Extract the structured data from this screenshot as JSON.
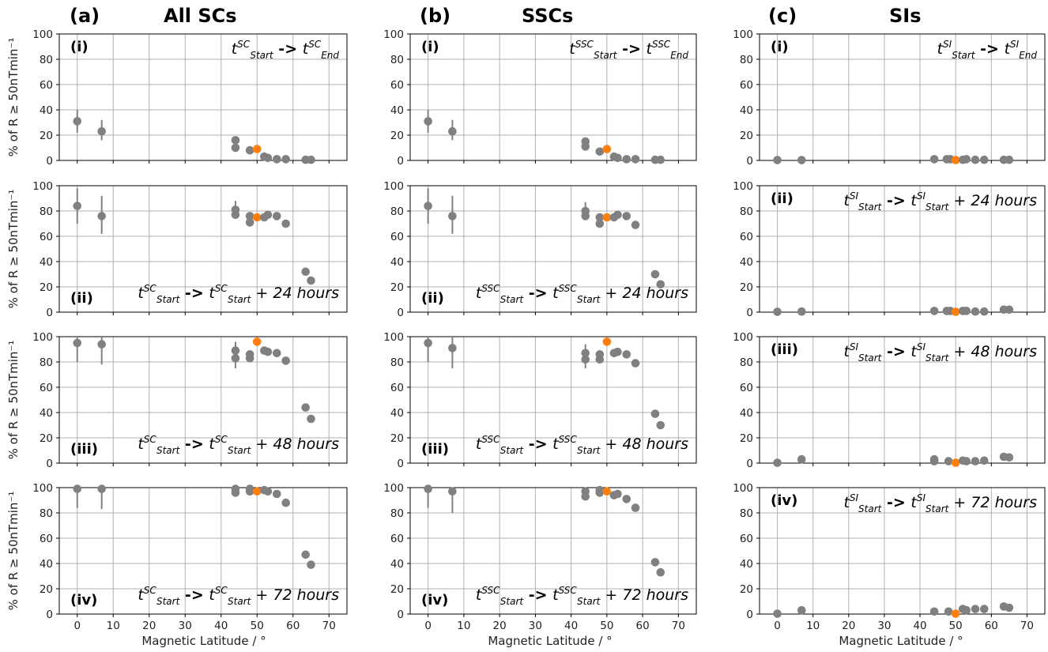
{
  "figure": {
    "column_titles": [
      {
        "letter": "(a)",
        "title": "All SCs"
      },
      {
        "letter": "(b)",
        "title": "SSCs"
      },
      {
        "letter": "(c)",
        "title": "SIs"
      }
    ],
    "xlabel": "Magnetic Latitude / °",
    "ylabel": "% of R ≥ 50nTmin⁻¹",
    "colors": {
      "point": "#808080",
      "highlight": "#ff7f0e",
      "grid": "#b0b0b0",
      "errorbar": "#808080"
    }
  },
  "chart_data": [
    {
      "type": "scatter",
      "column": 0,
      "row": 0,
      "panel": "(i)",
      "annotation": {
        "t1": "t",
        "sup1": "SC",
        "sub1": "Start",
        "arrow": "->",
        "t2": "t",
        "sup2": "SC",
        "sub2": "End",
        "plus": ""
      },
      "annotation_pos": "top-right",
      "label_pos": "top-left",
      "xlim": [
        -5,
        75
      ],
      "ylim": [
        0,
        100
      ],
      "xticks": [
        0,
        10,
        20,
        30,
        40,
        50,
        60,
        70
      ],
      "yticks": [
        0,
        20,
        40,
        60,
        80,
        100
      ],
      "grid": true,
      "points": [
        {
          "x": 0,
          "y": 31,
          "err": [
            22,
            40
          ]
        },
        {
          "x": 6.8,
          "y": 23,
          "err": [
            16,
            32
          ]
        },
        {
          "x": 44,
          "y": 16
        },
        {
          "x": 44,
          "y": 10
        },
        {
          "x": 48,
          "y": 8
        },
        {
          "x": 50,
          "y": 9,
          "highlight": true
        },
        {
          "x": 52,
          "y": 3
        },
        {
          "x": 53,
          "y": 2
        },
        {
          "x": 55.5,
          "y": 1
        },
        {
          "x": 58,
          "y": 1
        },
        {
          "x": 63.5,
          "y": 0.5
        },
        {
          "x": 65,
          "y": 0.5
        }
      ]
    },
    {
      "type": "scatter",
      "column": 0,
      "row": 1,
      "panel": "(ii)",
      "annotation": {
        "t1": "t",
        "sup1": "SC",
        "sub1": "Start",
        "arrow": "->",
        "t2": "t",
        "sup2": "SC",
        "sub2": "Start",
        "plus": "+ 24 hours"
      },
      "annotation_pos": "bottom-right",
      "label_pos": "bottom-left",
      "xlim": [
        -5,
        75
      ],
      "ylim": [
        0,
        100
      ],
      "xticks": [
        0,
        10,
        20,
        30,
        40,
        50,
        60,
        70
      ],
      "yticks": [
        0,
        20,
        40,
        60,
        80,
        100
      ],
      "grid": true,
      "points": [
        {
          "x": 0,
          "y": 84,
          "err": [
            70,
            98
          ]
        },
        {
          "x": 6.8,
          "y": 76,
          "err": [
            62,
            92
          ]
        },
        {
          "x": 44,
          "y": 81,
          "err": [
            74,
            88
          ]
        },
        {
          "x": 44,
          "y": 77
        },
        {
          "x": 48,
          "y": 76
        },
        {
          "x": 48,
          "y": 71
        },
        {
          "x": 50,
          "y": 75,
          "highlight": true
        },
        {
          "x": 52,
          "y": 75
        },
        {
          "x": 53,
          "y": 77
        },
        {
          "x": 55.5,
          "y": 76
        },
        {
          "x": 58,
          "y": 70
        },
        {
          "x": 63.5,
          "y": 32
        },
        {
          "x": 65,
          "y": 25
        }
      ]
    },
    {
      "type": "scatter",
      "column": 0,
      "row": 2,
      "panel": "(iii)",
      "annotation": {
        "t1": "t",
        "sup1": "SC",
        "sub1": "Start",
        "arrow": "->",
        "t2": "t",
        "sup2": "SC",
        "sub2": "Start",
        "plus": "+ 48 hours"
      },
      "annotation_pos": "bottom-right",
      "label_pos": "bottom-left",
      "xlim": [
        -5,
        75
      ],
      "ylim": [
        0,
        100
      ],
      "xticks": [
        0,
        10,
        20,
        30,
        40,
        50,
        60,
        70
      ],
      "yticks": [
        0,
        20,
        40,
        60,
        80,
        100
      ],
      "grid": true,
      "points": [
        {
          "x": 0,
          "y": 95,
          "err": [
            80,
            100
          ]
        },
        {
          "x": 6.8,
          "y": 94,
          "err": [
            78,
            100
          ]
        },
        {
          "x": 44,
          "y": 89,
          "err": [
            82,
            96
          ]
        },
        {
          "x": 44,
          "y": 83,
          "err": [
            75,
            90
          ]
        },
        {
          "x": 48,
          "y": 86
        },
        {
          "x": 48,
          "y": 83
        },
        {
          "x": 50,
          "y": 96,
          "highlight": true
        },
        {
          "x": 52,
          "y": 89
        },
        {
          "x": 53,
          "y": 88
        },
        {
          "x": 55.5,
          "y": 87
        },
        {
          "x": 58,
          "y": 81
        },
        {
          "x": 63.5,
          "y": 44
        },
        {
          "x": 65,
          "y": 35
        }
      ]
    },
    {
      "type": "scatter",
      "column": 0,
      "row": 3,
      "panel": "(iv)",
      "annotation": {
        "t1": "t",
        "sup1": "SC",
        "sub1": "Start",
        "arrow": "->",
        "t2": "t",
        "sup2": "SC",
        "sub2": "Start",
        "plus": "+ 72 hours"
      },
      "annotation_pos": "bottom-right",
      "label_pos": "bottom-left",
      "xlim": [
        -5,
        75
      ],
      "ylim": [
        0,
        100
      ],
      "xticks": [
        0,
        10,
        20,
        30,
        40,
        50,
        60,
        70
      ],
      "yticks": [
        0,
        20,
        40,
        60,
        80,
        100
      ],
      "grid": true,
      "points": [
        {
          "x": 0,
          "y": 99,
          "err": [
            84,
            100
          ]
        },
        {
          "x": 6.8,
          "y": 99,
          "err": [
            83,
            100
          ]
        },
        {
          "x": 44,
          "y": 99
        },
        {
          "x": 44,
          "y": 96
        },
        {
          "x": 48,
          "y": 99
        },
        {
          "x": 48,
          "y": 97
        },
        {
          "x": 50,
          "y": 97,
          "highlight": true
        },
        {
          "x": 52,
          "y": 98
        },
        {
          "x": 53,
          "y": 97
        },
        {
          "x": 55.5,
          "y": 95
        },
        {
          "x": 58,
          "y": 88
        },
        {
          "x": 63.5,
          "y": 47
        },
        {
          "x": 65,
          "y": 39
        }
      ]
    },
    {
      "type": "scatter",
      "column": 1,
      "row": 0,
      "panel": "(i)",
      "annotation": {
        "t1": "t",
        "sup1": "SSC",
        "sub1": "Start",
        "arrow": "->",
        "t2": "t",
        "sup2": "SSC",
        "sub2": "End",
        "plus": ""
      },
      "annotation_pos": "top-right",
      "label_pos": "top-left",
      "xlim": [
        -5,
        75
      ],
      "ylim": [
        0,
        100
      ],
      "xticks": [
        0,
        10,
        20,
        30,
        40,
        50,
        60,
        70
      ],
      "yticks": [
        0,
        20,
        40,
        60,
        80,
        100
      ],
      "grid": true,
      "points": [
        {
          "x": 0,
          "y": 31,
          "err": [
            22,
            40
          ]
        },
        {
          "x": 6.8,
          "y": 23,
          "err": [
            16,
            32
          ]
        },
        {
          "x": 44,
          "y": 15
        },
        {
          "x": 44,
          "y": 11
        },
        {
          "x": 48,
          "y": 7
        },
        {
          "x": 50,
          "y": 9,
          "highlight": true
        },
        {
          "x": 52,
          "y": 3
        },
        {
          "x": 53,
          "y": 2
        },
        {
          "x": 55.5,
          "y": 1
        },
        {
          "x": 58,
          "y": 1
        },
        {
          "x": 63.5,
          "y": 0.5
        },
        {
          "x": 65,
          "y": 0.5
        }
      ]
    },
    {
      "type": "scatter",
      "column": 1,
      "row": 1,
      "panel": "(ii)",
      "annotation": {
        "t1": "t",
        "sup1": "SSC",
        "sub1": "Start",
        "arrow": "->",
        "t2": "t",
        "sup2": "SSC",
        "sub2": "Start",
        "plus": "+ 24 hours"
      },
      "annotation_pos": "bottom-right",
      "label_pos": "bottom-left",
      "xlim": [
        -5,
        75
      ],
      "ylim": [
        0,
        100
      ],
      "xticks": [
        0,
        10,
        20,
        30,
        40,
        50,
        60,
        70
      ],
      "yticks": [
        0,
        20,
        40,
        60,
        80,
        100
      ],
      "grid": true,
      "points": [
        {
          "x": 0,
          "y": 84,
          "err": [
            70,
            98
          ]
        },
        {
          "x": 6.8,
          "y": 76,
          "err": [
            62,
            92
          ]
        },
        {
          "x": 44,
          "y": 80,
          "err": [
            73,
            87
          ]
        },
        {
          "x": 44,
          "y": 76
        },
        {
          "x": 48,
          "y": 75
        },
        {
          "x": 48,
          "y": 70
        },
        {
          "x": 50,
          "y": 75,
          "highlight": true
        },
        {
          "x": 52,
          "y": 75
        },
        {
          "x": 53,
          "y": 77
        },
        {
          "x": 55.5,
          "y": 76
        },
        {
          "x": 58,
          "y": 69
        },
        {
          "x": 63.5,
          "y": 30
        },
        {
          "x": 65,
          "y": 22
        }
      ]
    },
    {
      "type": "scatter",
      "column": 1,
      "row": 2,
      "panel": "(iii)",
      "annotation": {
        "t1": "t",
        "sup1": "SSC",
        "sub1": "Start",
        "arrow": "->",
        "t2": "t",
        "sup2": "SSC",
        "sub2": "Start",
        "plus": "+ 48 hours"
      },
      "annotation_pos": "bottom-right",
      "label_pos": "bottom-left",
      "xlim": [
        -5,
        75
      ],
      "ylim": [
        0,
        100
      ],
      "xticks": [
        0,
        10,
        20,
        30,
        40,
        50,
        60,
        70
      ],
      "yticks": [
        0,
        20,
        40,
        60,
        80,
        100
      ],
      "grid": true,
      "points": [
        {
          "x": 0,
          "y": 95,
          "err": [
            80,
            100
          ]
        },
        {
          "x": 6.8,
          "y": 91,
          "err": [
            75,
            100
          ]
        },
        {
          "x": 44,
          "y": 87,
          "err": [
            80,
            94
          ]
        },
        {
          "x": 44,
          "y": 82,
          "err": [
            75,
            90
          ]
        },
        {
          "x": 48,
          "y": 86
        },
        {
          "x": 48,
          "y": 82
        },
        {
          "x": 50,
          "y": 96,
          "highlight": true
        },
        {
          "x": 52,
          "y": 87
        },
        {
          "x": 53,
          "y": 88
        },
        {
          "x": 55.5,
          "y": 86
        },
        {
          "x": 58,
          "y": 79
        },
        {
          "x": 63.5,
          "y": 39
        },
        {
          "x": 65,
          "y": 30
        }
      ]
    },
    {
      "type": "scatter",
      "column": 1,
      "row": 3,
      "panel": "(iv)",
      "annotation": {
        "t1": "t",
        "sup1": "SSC",
        "sub1": "Start",
        "arrow": "->",
        "t2": "t",
        "sup2": "SSC",
        "sub2": "Start",
        "plus": "+ 72 hours"
      },
      "annotation_pos": "bottom-right",
      "label_pos": "bottom-left",
      "xlim": [
        -5,
        75
      ],
      "ylim": [
        0,
        100
      ],
      "xticks": [
        0,
        10,
        20,
        30,
        40,
        50,
        60,
        70
      ],
      "yticks": [
        0,
        20,
        40,
        60,
        80,
        100
      ],
      "grid": true,
      "points": [
        {
          "x": 0,
          "y": 99,
          "err": [
            84,
            100
          ]
        },
        {
          "x": 6.8,
          "y": 97,
          "err": [
            80,
            100
          ]
        },
        {
          "x": 44,
          "y": 97,
          "err": [
            90,
            100
          ]
        },
        {
          "x": 44,
          "y": 93
        },
        {
          "x": 48,
          "y": 98
        },
        {
          "x": 48,
          "y": 96
        },
        {
          "x": 50,
          "y": 97,
          "highlight": true
        },
        {
          "x": 52,
          "y": 94
        },
        {
          "x": 53,
          "y": 95
        },
        {
          "x": 55.5,
          "y": 91
        },
        {
          "x": 58,
          "y": 84
        },
        {
          "x": 63.5,
          "y": 41
        },
        {
          "x": 65,
          "y": 33
        }
      ]
    },
    {
      "type": "scatter",
      "column": 2,
      "row": 0,
      "panel": "(i)",
      "annotation": {
        "t1": "t",
        "sup1": "SI",
        "sub1": "Start",
        "arrow": "->",
        "t2": "t",
        "sup2": "SI",
        "sub2": "End",
        "plus": ""
      },
      "annotation_pos": "top-right",
      "label_pos": "top-left",
      "xlim": [
        -5,
        75
      ],
      "ylim": [
        0,
        100
      ],
      "xticks": [
        0,
        10,
        20,
        30,
        40,
        50,
        60,
        70
      ],
      "yticks": [
        0,
        20,
        40,
        60,
        80,
        100
      ],
      "grid": true,
      "points": [
        {
          "x": 0,
          "y": 0.3
        },
        {
          "x": 6.8,
          "y": 0.3
        },
        {
          "x": 44,
          "y": 1
        },
        {
          "x": 47.5,
          "y": 1
        },
        {
          "x": 48.5,
          "y": 1
        },
        {
          "x": 50,
          "y": 0.3,
          "highlight": true
        },
        {
          "x": 52,
          "y": 0.5
        },
        {
          "x": 53,
          "y": 1
        },
        {
          "x": 55.5,
          "y": 0.5
        },
        {
          "x": 58,
          "y": 0.5
        },
        {
          "x": 63.5,
          "y": 0.5
        },
        {
          "x": 65,
          "y": 0.5
        }
      ]
    },
    {
      "type": "scatter",
      "column": 2,
      "row": 1,
      "panel": "(ii)",
      "annotation": {
        "t1": "t",
        "sup1": "SI",
        "sub1": "Start",
        "arrow": "->",
        "t2": "t",
        "sup2": "SI",
        "sub2": "Start",
        "plus": "+ 24 hours"
      },
      "annotation_pos": "top-right",
      "label_pos": "top-left",
      "xlim": [
        -5,
        75
      ],
      "ylim": [
        0,
        100
      ],
      "xticks": [
        0,
        10,
        20,
        30,
        40,
        50,
        60,
        70
      ],
      "yticks": [
        0,
        20,
        40,
        60,
        80,
        100
      ],
      "grid": true,
      "points": [
        {
          "x": 0,
          "y": 0.3
        },
        {
          "x": 6.8,
          "y": 0.5
        },
        {
          "x": 44,
          "y": 1
        },
        {
          "x": 47.5,
          "y": 1
        },
        {
          "x": 48.5,
          "y": 1
        },
        {
          "x": 50,
          "y": 0.3,
          "highlight": true
        },
        {
          "x": 52,
          "y": 1
        },
        {
          "x": 53,
          "y": 1
        },
        {
          "x": 55.5,
          "y": 0.5
        },
        {
          "x": 58,
          "y": 0.5
        },
        {
          "x": 63.5,
          "y": 2
        },
        {
          "x": 65,
          "y": 2
        }
      ]
    },
    {
      "type": "scatter",
      "column": 2,
      "row": 2,
      "panel": "(iii)",
      "annotation": {
        "t1": "t",
        "sup1": "SI",
        "sub1": "Start",
        "arrow": "->",
        "t2": "t",
        "sup2": "SI",
        "sub2": "Start",
        "plus": "+ 48 hours"
      },
      "annotation_pos": "top-right",
      "label_pos": "top-left",
      "xlim": [
        -5,
        75
      ],
      "ylim": [
        0,
        100
      ],
      "xticks": [
        0,
        10,
        20,
        30,
        40,
        50,
        60,
        70
      ],
      "yticks": [
        0,
        20,
        40,
        60,
        80,
        100
      ],
      "grid": true,
      "points": [
        {
          "x": 0,
          "y": 0.3
        },
        {
          "x": 6.8,
          "y": 3
        },
        {
          "x": 44,
          "y": 3
        },
        {
          "x": 44,
          "y": 1.5
        },
        {
          "x": 48,
          "y": 1.5
        },
        {
          "x": 50,
          "y": 0.3,
          "highlight": true
        },
        {
          "x": 52,
          "y": 2
        },
        {
          "x": 53,
          "y": 1.5
        },
        {
          "x": 55.5,
          "y": 1.5
        },
        {
          "x": 58,
          "y": 2
        },
        {
          "x": 63.5,
          "y": 5
        },
        {
          "x": 65,
          "y": 4.5
        }
      ]
    },
    {
      "type": "scatter",
      "column": 2,
      "row": 3,
      "panel": "(iv)",
      "annotation": {
        "t1": "t",
        "sup1": "SI",
        "sub1": "Start",
        "arrow": "->",
        "t2": "t",
        "sup2": "SI",
        "sub2": "Start",
        "plus": "+ 72 hours"
      },
      "annotation_pos": "top-right",
      "label_pos": "top-left",
      "xlim": [
        -5,
        75
      ],
      "ylim": [
        0,
        100
      ],
      "xticks": [
        0,
        10,
        20,
        30,
        40,
        50,
        60,
        70
      ],
      "yticks": [
        0,
        20,
        40,
        60,
        80,
        100
      ],
      "grid": true,
      "points": [
        {
          "x": 0,
          "y": 0.3
        },
        {
          "x": 6.8,
          "y": 3
        },
        {
          "x": 44,
          "y": 2
        },
        {
          "x": 48,
          "y": 2
        },
        {
          "x": 50,
          "y": 0.3,
          "highlight": true
        },
        {
          "x": 52,
          "y": 4
        },
        {
          "x": 53,
          "y": 3
        },
        {
          "x": 55.5,
          "y": 4
        },
        {
          "x": 58,
          "y": 4
        },
        {
          "x": 63.5,
          "y": 6
        },
        {
          "x": 65,
          "y": 5
        }
      ]
    }
  ]
}
